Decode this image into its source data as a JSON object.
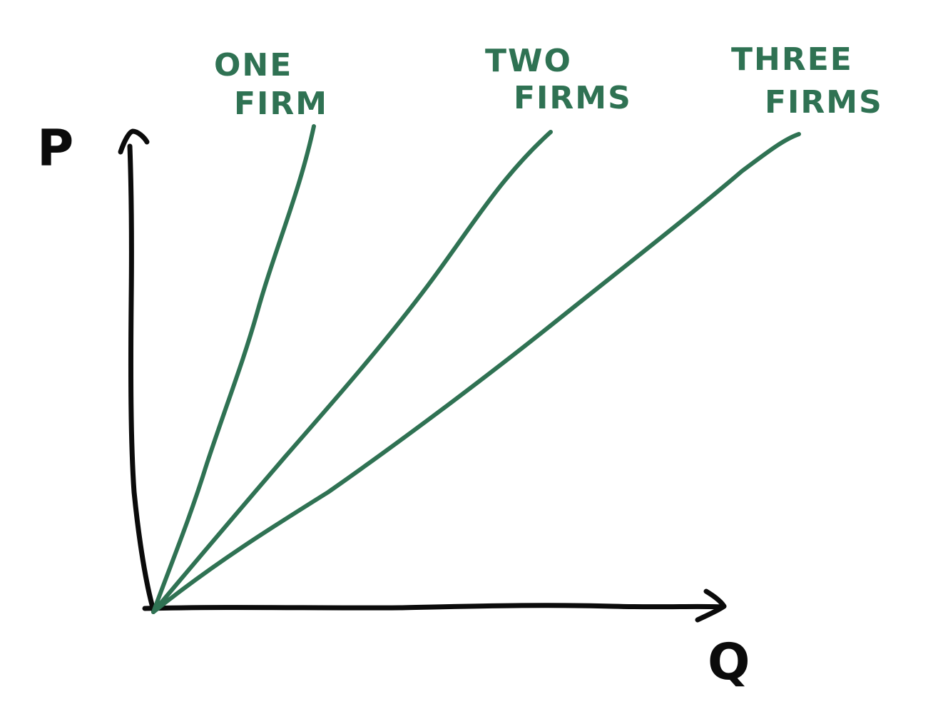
{
  "axes": {
    "y_label": "P",
    "x_label": "Q",
    "color": "#0b0b0b"
  },
  "lines": [
    {
      "id": "one-firm",
      "label_line1": "ONE",
      "label_line2": "FIRM"
    },
    {
      "id": "two-firms",
      "label_line1": "TWO",
      "label_line2": "FIRMS"
    },
    {
      "id": "three-firms",
      "label_line1": "THREE",
      "label_line2": "FIRMS"
    }
  ],
  "line_color": "#2f7253"
}
